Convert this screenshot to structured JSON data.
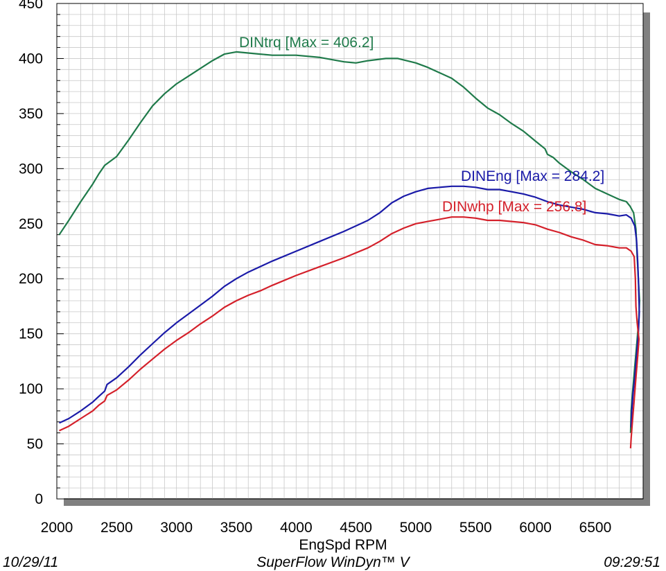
{
  "chart_data": {
    "type": "line",
    "title": "",
    "xlabel": "EngSpd  RPM",
    "ylabel": "",
    "xlim": [
      2000,
      6900
    ],
    "ylim": [
      0,
      450
    ],
    "x_ticks": [
      "2000",
      "2500",
      "3000",
      "3500",
      "4000",
      "4500",
      "5000",
      "5500",
      "6000",
      "6500"
    ],
    "y_ticks": [
      "0",
      "50",
      "100",
      "150",
      "200",
      "250",
      "300",
      "350",
      "400",
      "450"
    ],
    "grid": true,
    "series": [
      {
        "name": "DINtrq",
        "label": "DINtrq [Max = 406.2]",
        "color": "#1f7a4a",
        "points": [
          [
            2020,
            240
          ],
          [
            2100,
            253
          ],
          [
            2200,
            270
          ],
          [
            2300,
            286
          ],
          [
            2350,
            295
          ],
          [
            2400,
            303
          ],
          [
            2500,
            311
          ],
          [
            2600,
            326
          ],
          [
            2700,
            342
          ],
          [
            2800,
            357
          ],
          [
            2900,
            368
          ],
          [
            3000,
            377
          ],
          [
            3100,
            384
          ],
          [
            3200,
            391
          ],
          [
            3300,
            398
          ],
          [
            3400,
            404
          ],
          [
            3500,
            406
          ],
          [
            3600,
            405
          ],
          [
            3700,
            404
          ],
          [
            3800,
            403
          ],
          [
            4000,
            403
          ],
          [
            4200,
            401
          ],
          [
            4400,
            397
          ],
          [
            4500,
            396
          ],
          [
            4600,
            398
          ],
          [
            4750,
            400
          ],
          [
            4850,
            400
          ],
          [
            5000,
            396
          ],
          [
            5100,
            392
          ],
          [
            5200,
            387
          ],
          [
            5300,
            382
          ],
          [
            5400,
            374
          ],
          [
            5500,
            364
          ],
          [
            5600,
            355
          ],
          [
            5700,
            349
          ],
          [
            5800,
            341
          ],
          [
            5900,
            334
          ],
          [
            6000,
            325
          ],
          [
            6080,
            318
          ],
          [
            6100,
            313
          ],
          [
            6150,
            310
          ],
          [
            6200,
            305
          ],
          [
            6300,
            297
          ],
          [
            6400,
            290
          ],
          [
            6500,
            282
          ],
          [
            6600,
            277
          ],
          [
            6700,
            272
          ],
          [
            6760,
            270
          ],
          [
            6790,
            266
          ],
          [
            6820,
            260
          ],
          [
            6840,
            245
          ],
          [
            6850,
            220
          ],
          [
            6860,
            200
          ],
          [
            6870,
            180
          ],
          [
            6865,
            165
          ],
          [
            6850,
            145
          ],
          [
            6830,
            120
          ],
          [
            6810,
            95
          ],
          [
            6800,
            80
          ],
          [
            6795,
            60
          ]
        ]
      },
      {
        "name": "DINEng",
        "label": "DINEng [Max = 284.2]",
        "color": "#1a1aa8",
        "points": [
          [
            2020,
            69
          ],
          [
            2100,
            73
          ],
          [
            2200,
            80
          ],
          [
            2300,
            88
          ],
          [
            2350,
            93
          ],
          [
            2400,
            98
          ],
          [
            2420,
            104
          ],
          [
            2500,
            110
          ],
          [
            2600,
            120
          ],
          [
            2700,
            131
          ],
          [
            2800,
            141
          ],
          [
            2900,
            151
          ],
          [
            3000,
            160
          ],
          [
            3100,
            168
          ],
          [
            3200,
            176
          ],
          [
            3300,
            184
          ],
          [
            3400,
            193
          ],
          [
            3500,
            200
          ],
          [
            3600,
            206
          ],
          [
            3700,
            211
          ],
          [
            3800,
            216
          ],
          [
            4000,
            225
          ],
          [
            4200,
            234
          ],
          [
            4400,
            243
          ],
          [
            4600,
            253
          ],
          [
            4700,
            260
          ],
          [
            4800,
            269
          ],
          [
            4900,
            275
          ],
          [
            5000,
            279
          ],
          [
            5100,
            282
          ],
          [
            5200,
            283
          ],
          [
            5300,
            284
          ],
          [
            5400,
            284
          ],
          [
            5500,
            283
          ],
          [
            5600,
            281
          ],
          [
            5700,
            281
          ],
          [
            5800,
            279
          ],
          [
            5900,
            277
          ],
          [
            6000,
            274
          ],
          [
            6100,
            270
          ],
          [
            6200,
            267
          ],
          [
            6300,
            265
          ],
          [
            6400,
            263
          ],
          [
            6500,
            260
          ],
          [
            6600,
            259
          ],
          [
            6700,
            257
          ],
          [
            6760,
            258
          ],
          [
            6800,
            255
          ],
          [
            6830,
            248
          ],
          [
            6845,
            235
          ],
          [
            6855,
            215
          ],
          [
            6862,
            195
          ],
          [
            6868,
            170
          ],
          [
            6860,
            150
          ],
          [
            6845,
            130
          ],
          [
            6830,
            110
          ],
          [
            6815,
            95
          ],
          [
            6805,
            80
          ],
          [
            6800,
            65
          ]
        ]
      },
      {
        "name": "DINwhp",
        "label": "DINwhp [Max = 256.8]",
        "color": "#d4202a",
        "points": [
          [
            2020,
            62
          ],
          [
            2100,
            66
          ],
          [
            2200,
            73
          ],
          [
            2300,
            80
          ],
          [
            2350,
            85
          ],
          [
            2400,
            89
          ],
          [
            2420,
            94
          ],
          [
            2500,
            99
          ],
          [
            2600,
            108
          ],
          [
            2700,
            118
          ],
          [
            2800,
            127
          ],
          [
            2900,
            136
          ],
          [
            3000,
            144
          ],
          [
            3100,
            151
          ],
          [
            3200,
            159
          ],
          [
            3300,
            166
          ],
          [
            3400,
            174
          ],
          [
            3500,
            180
          ],
          [
            3600,
            185
          ],
          [
            3700,
            189
          ],
          [
            3800,
            194
          ],
          [
            4000,
            203
          ],
          [
            4200,
            211
          ],
          [
            4400,
            219
          ],
          [
            4600,
            228
          ],
          [
            4700,
            234
          ],
          [
            4800,
            241
          ],
          [
            4900,
            246
          ],
          [
            5000,
            250
          ],
          [
            5100,
            252
          ],
          [
            5200,
            254
          ],
          [
            5300,
            256
          ],
          [
            5400,
            256
          ],
          [
            5500,
            255
          ],
          [
            5600,
            253
          ],
          [
            5700,
            253
          ],
          [
            5800,
            252
          ],
          [
            5900,
            251
          ],
          [
            6000,
            249
          ],
          [
            6100,
            245
          ],
          [
            6200,
            242
          ],
          [
            6300,
            238
          ],
          [
            6400,
            235
          ],
          [
            6500,
            231
          ],
          [
            6600,
            230
          ],
          [
            6700,
            228
          ],
          [
            6760,
            228
          ],
          [
            6800,
            225
          ],
          [
            6825,
            220
          ],
          [
            6835,
            200
          ],
          [
            6840,
            175
          ],
          [
            6850,
            160
          ],
          [
            6865,
            145
          ],
          [
            6855,
            130
          ],
          [
            6840,
            110
          ],
          [
            6825,
            90
          ],
          [
            6810,
            70
          ],
          [
            6800,
            55
          ],
          [
            6795,
            46
          ]
        ]
      }
    ],
    "annotations": [
      {
        "series": "DINtrq",
        "text": "DINtrq [Max = 406.2]"
      },
      {
        "series": "DINEng",
        "text": "DINEng [Max = 284.2]"
      },
      {
        "series": "DINwhp",
        "text": "DINwhp [Max = 256.8]"
      }
    ]
  },
  "footer": {
    "date": "10/29/11",
    "brand": "SuperFlow WinDyn™ V",
    "time": "09:29:51"
  }
}
